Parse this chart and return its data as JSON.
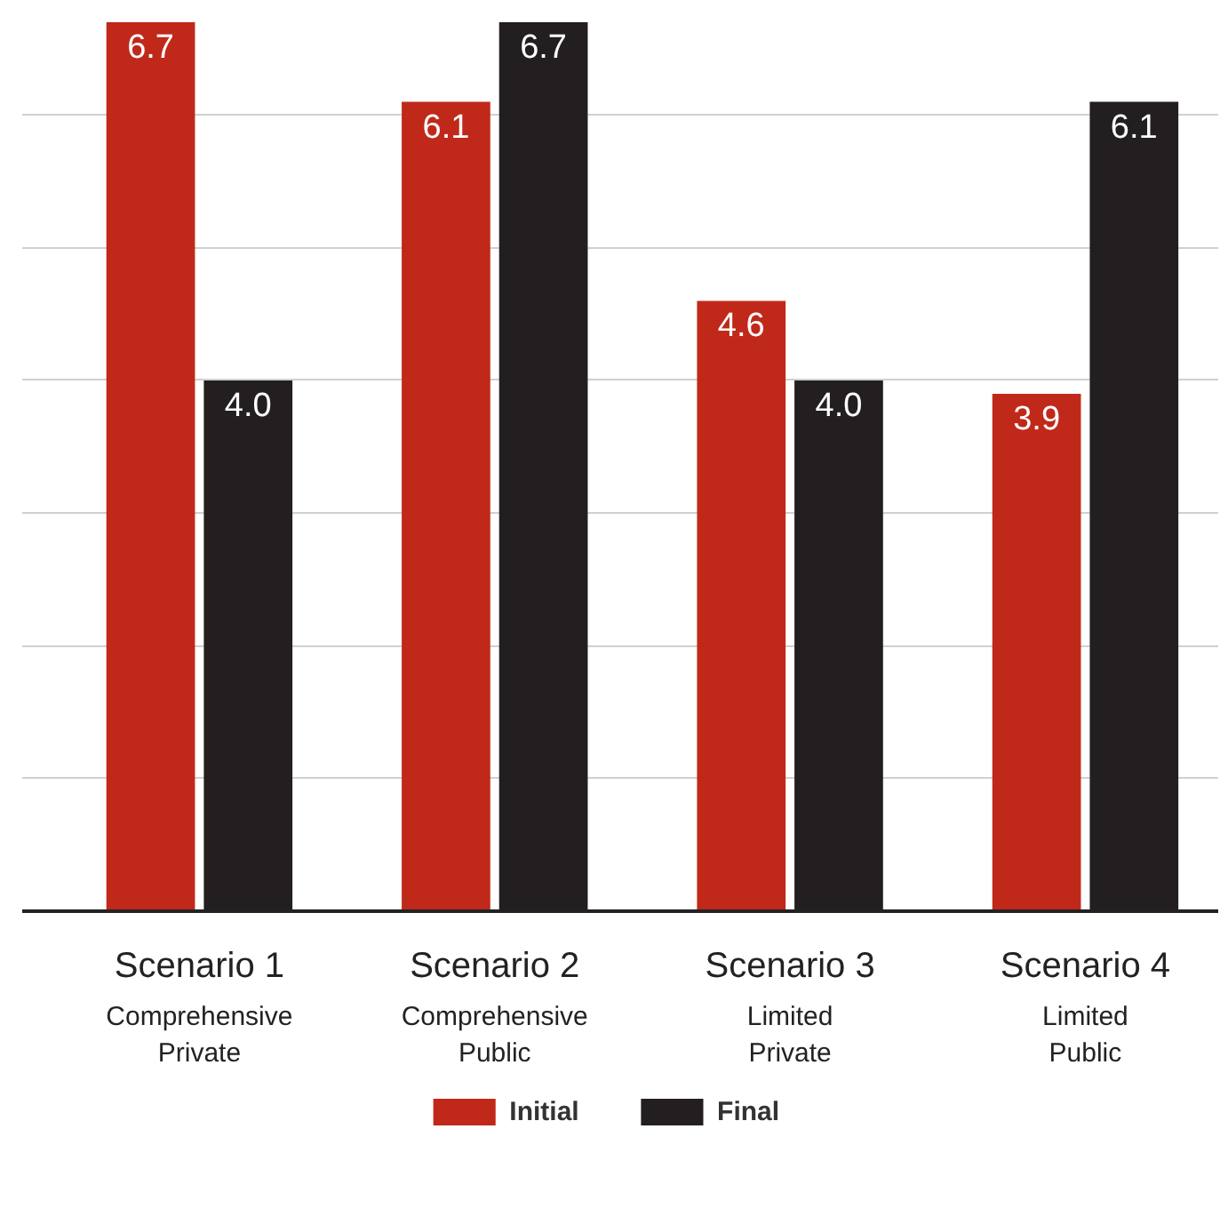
{
  "chart_data": {
    "type": "bar",
    "categories": [
      "Scenario 1\nComprehensive\nPrivate",
      "Scenario 2\nComprehensive\nPublic",
      "Scenario 3\nLimited\nPrivate",
      "Scenario 4\nLimited\nPublic"
    ],
    "series": [
      {
        "name": "Initial",
        "color": "#c0291a",
        "values": [
          6.7,
          6.1,
          4.6,
          3.9
        ],
        "value_labels": [
          "6.7",
          "6.1",
          "4.6",
          "3.9"
        ]
      },
      {
        "name": "Final",
        "color": "#231f20",
        "values": [
          4,
          6.7,
          4,
          6.1
        ],
        "value_labels": [
          "4.0",
          "6.7",
          "4.0",
          "6.1"
        ]
      }
    ],
    "ylim": [
      0,
      6.7
    ],
    "yticks": [
      {
        "value": 1,
        "label": null
      },
      {
        "value": 2,
        "label": null
      },
      {
        "value": 3,
        "label": null
      },
      {
        "value": 4,
        "label": null
      },
      {
        "value": 5,
        "label": null
      },
      {
        "value": 6,
        "label": null
      }
    ],
    "grid": "y",
    "tick_labels": "x",
    "data_labels": true,
    "legend": "bottom"
  }
}
